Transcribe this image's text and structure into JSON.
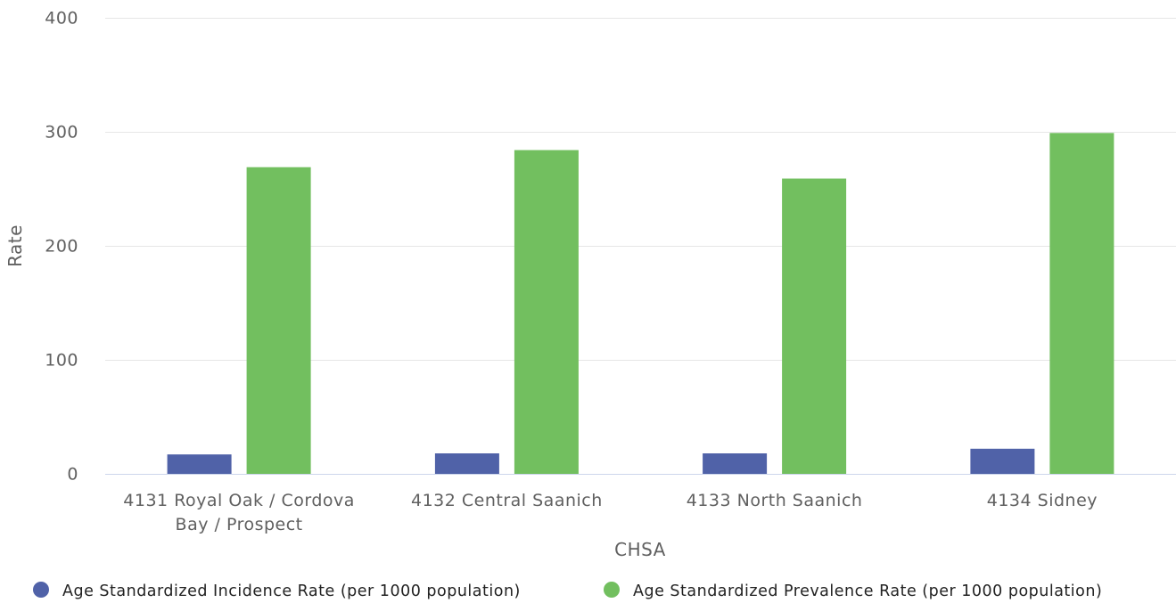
{
  "chart_data": {
    "type": "bar",
    "xlabel": "CHSA",
    "ylabel": "Rate",
    "ylim": [
      0,
      400
    ],
    "yticks": [
      0,
      100,
      200,
      300,
      400
    ],
    "grid": true,
    "legend_position": "bottom",
    "categories": [
      [
        "4131 Royal Oak / Cordova",
        "Bay / Prospect"
      ],
      [
        "4132 Central Saanich"
      ],
      [
        "4133 North Saanich"
      ],
      [
        "4134 Sidney"
      ]
    ],
    "series": [
      {
        "name": "Age Standardized Incidence Rate (per 1000 population)",
        "color": "#5062a8",
        "values": [
          17,
          18,
          18,
          22
        ]
      },
      {
        "name": "Age Standardized Prevalence Rate (per 1000 population)",
        "color": "#72bf5f",
        "values": [
          269,
          284,
          259,
          299
        ]
      }
    ]
  }
}
